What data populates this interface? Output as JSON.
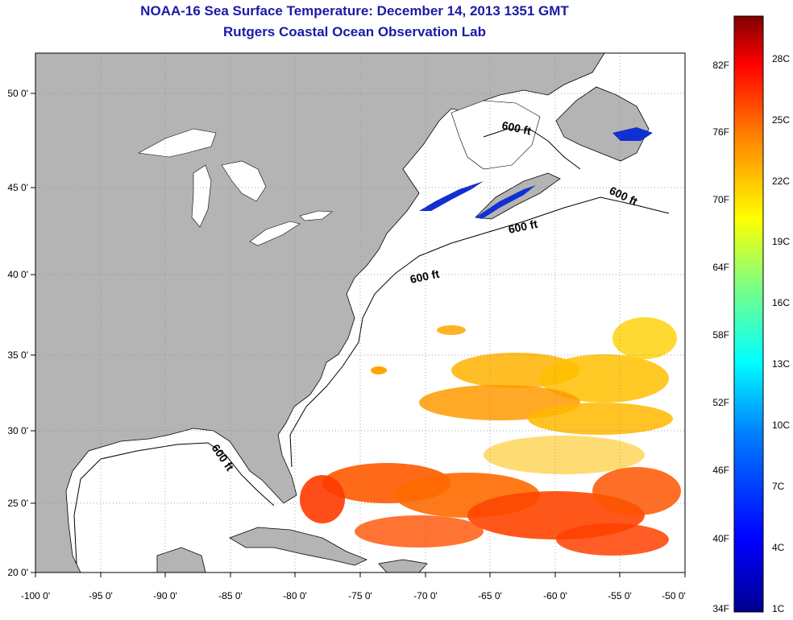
{
  "header": {
    "title": "NOAA-16 Sea Surface Temperature:  December 14, 2013 1351 GMT",
    "subtitle": "Rutgers Coastal Ocean Observation Lab"
  },
  "map": {
    "lon_labels": [
      "-100 0'",
      "-95 0'",
      "-90 0'",
      "-85 0'",
      "-80 0'",
      "-75 0'",
      "-70 0'",
      "-65 0'",
      "-60 0'",
      "-55 0'",
      "-50 0'"
    ],
    "lat_labels": [
      "50 0'",
      "45 0'",
      "40 0'",
      "35 0'",
      "30 0'",
      "25 0'",
      "20 0'"
    ],
    "contour_label": "600 ft",
    "colors": {
      "land": "#b4b4b4",
      "ocean": "#ffffff",
      "grid": "#888888"
    }
  },
  "colorbar": {
    "f_labels": [
      "82F",
      "76F",
      "70F",
      "64F",
      "58F",
      "52F",
      "46F",
      "40F",
      "34F"
    ],
    "c_labels": [
      "28C",
      "25C",
      "22C",
      "19C",
      "16C",
      "13C",
      "10C",
      "7C",
      "4C",
      "1C"
    ],
    "colors": [
      "#00008f",
      "#0000ff",
      "#0080ff",
      "#00ffff",
      "#80ff80",
      "#ffff00",
      "#ff8000",
      "#ff0000",
      "#800000"
    ]
  }
}
